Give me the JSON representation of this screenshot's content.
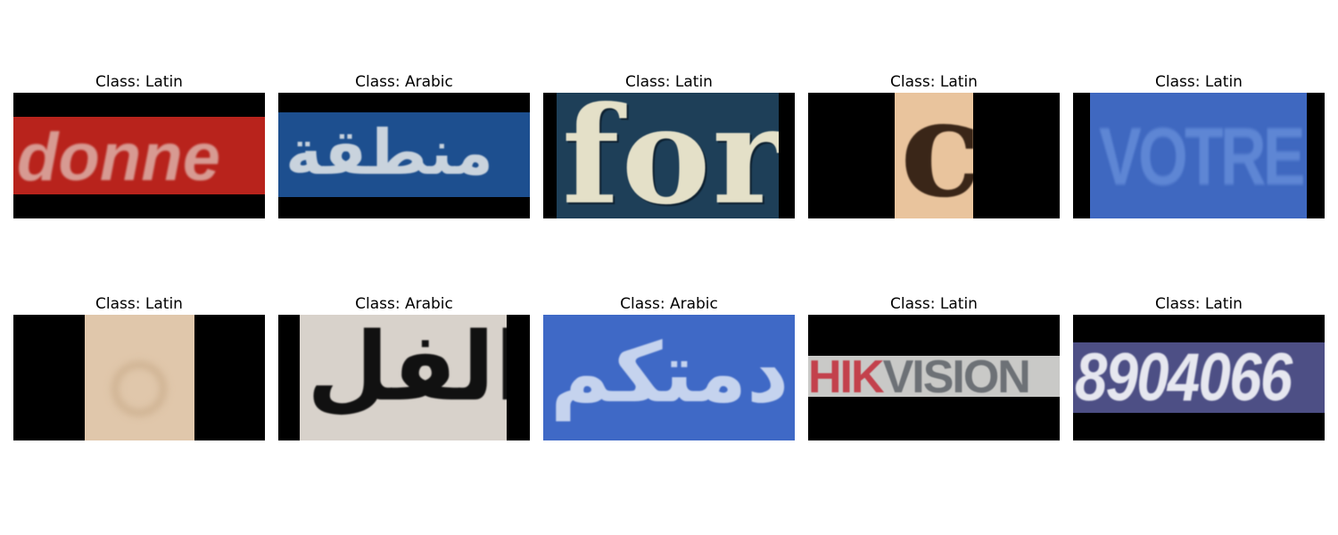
{
  "samples": [
    {
      "label": "Class: Latin",
      "text": "donne"
    },
    {
      "label": "Class: Arabic",
      "text": "منطقة"
    },
    {
      "label": "Class: Latin",
      "text": "for"
    },
    {
      "label": "Class: Latin",
      "text": "c"
    },
    {
      "label": "Class: Latin",
      "text": "VOTRE"
    },
    {
      "label": "Class: Latin",
      "text": ""
    },
    {
      "label": "Class: Arabic",
      "text": "الفل"
    },
    {
      "label": "Class: Arabic",
      "text": "دمتكم"
    },
    {
      "label": "Class: Latin",
      "text_a": "HIK",
      "text_b": "VISION"
    },
    {
      "label": "Class: Latin",
      "text": "8904066"
    }
  ]
}
